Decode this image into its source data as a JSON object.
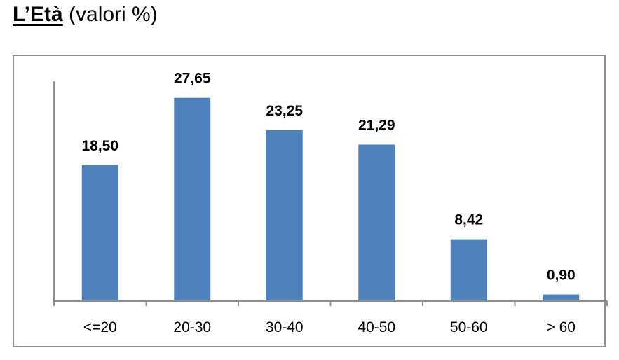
{
  "title": {
    "bold": "L’Età",
    "rest": "(valori %)"
  },
  "colors": {
    "bar": "#4f81bd",
    "axis": "#8e8e8e",
    "frame": "#8e8e8e"
  },
  "chart_data": {
    "type": "bar",
    "title": "L’Età (valori %)",
    "categories": [
      "<=20",
      "20-30",
      "30-40",
      "40-50",
      "50-60",
      "> 60"
    ],
    "values": [
      18.5,
      27.65,
      23.25,
      21.29,
      8.42,
      0.9
    ],
    "value_labels": [
      "18,50",
      "27,65",
      "23,25",
      "21,29",
      "8,42",
      "0,90"
    ],
    "xlabel": "",
    "ylabel": "",
    "ylim": [
      0,
      30
    ],
    "grid": false,
    "legend": "none"
  }
}
